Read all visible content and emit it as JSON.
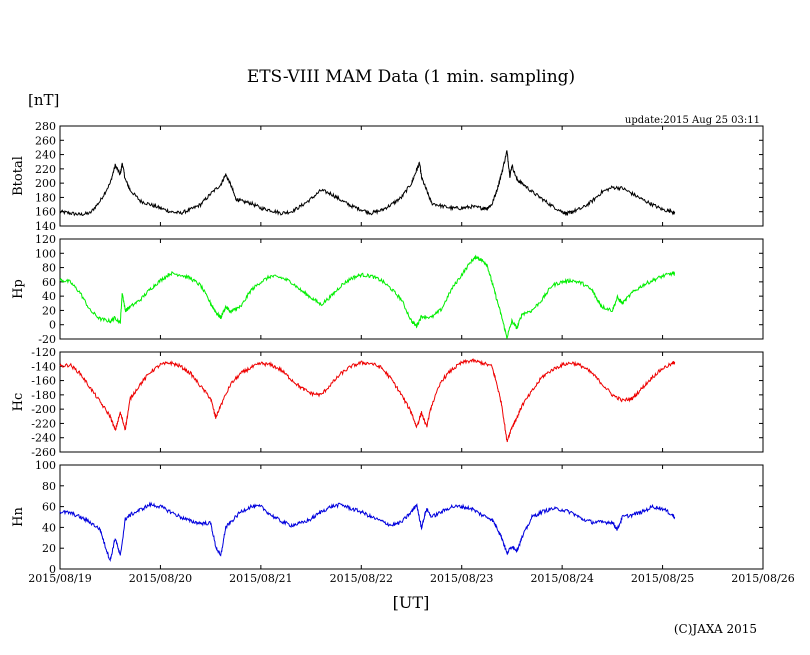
{
  "chart_data": {
    "type": "line",
    "title": "ETS-VIII MAM Data (1 min. sampling)",
    "y_unit_label": "[nT]",
    "x_label": "[UT]",
    "update_text": "update:2015 Aug 25 03:11",
    "copyright": "(C)JAXA 2015",
    "x_range": [
      0,
      7
    ],
    "x_ticks": [
      {
        "value": 0,
        "label": "2015/08/19"
      },
      {
        "value": 1,
        "label": "2015/08/20"
      },
      {
        "value": 2,
        "label": "2015/08/21"
      },
      {
        "value": 3,
        "label": "2015/08/22"
      },
      {
        "value": 4,
        "label": "2015/08/23"
      },
      {
        "value": 5,
        "label": "2015/08/24"
      },
      {
        "value": 6,
        "label": "2015/08/25"
      },
      {
        "value": 7,
        "label": "2015/08/26"
      }
    ],
    "data_end_day": 6.12,
    "panels": [
      {
        "name": "Btotal",
        "color": "#000000",
        "ylim": [
          140,
          280
        ],
        "yticks": [
          140,
          160,
          180,
          200,
          220,
          240,
          260,
          280
        ],
        "points": [
          [
            0,
            160
          ],
          [
            0.1,
            158
          ],
          [
            0.2,
            156
          ],
          [
            0.3,
            158
          ],
          [
            0.4,
            175
          ],
          [
            0.5,
            200
          ],
          [
            0.55,
            225
          ],
          [
            0.6,
            212
          ],
          [
            0.62,
            228
          ],
          [
            0.65,
            205
          ],
          [
            0.7,
            190
          ],
          [
            0.8,
            175
          ],
          [
            0.9,
            170
          ],
          [
            1.0,
            165
          ],
          [
            1.1,
            160
          ],
          [
            1.2,
            158
          ],
          [
            1.3,
            163
          ],
          [
            1.4,
            170
          ],
          [
            1.5,
            185
          ],
          [
            1.6,
            198
          ],
          [
            1.65,
            212
          ],
          [
            1.7,
            198
          ],
          [
            1.75,
            178
          ],
          [
            1.8,
            175
          ],
          [
            1.9,
            172
          ],
          [
            2.0,
            165
          ],
          [
            2.1,
            162
          ],
          [
            2.2,
            158
          ],
          [
            2.3,
            160
          ],
          [
            2.4,
            168
          ],
          [
            2.5,
            178
          ],
          [
            2.6,
            190
          ],
          [
            2.7,
            185
          ],
          [
            2.8,
            176
          ],
          [
            2.9,
            168
          ],
          [
            3.0,
            163
          ],
          [
            3.1,
            158
          ],
          [
            3.2,
            162
          ],
          [
            3.3,
            170
          ],
          [
            3.4,
            180
          ],
          [
            3.5,
            200
          ],
          [
            3.55,
            218
          ],
          [
            3.58,
            228
          ],
          [
            3.6,
            208
          ],
          [
            3.65,
            190
          ],
          [
            3.7,
            172
          ],
          [
            3.8,
            168
          ],
          [
            3.9,
            165
          ],
          [
            4.0,
            165
          ],
          [
            4.1,
            167
          ],
          [
            4.2,
            165
          ],
          [
            4.25,
            165
          ],
          [
            4.3,
            170
          ],
          [
            4.35,
            190
          ],
          [
            4.4,
            215
          ],
          [
            4.45,
            245
          ],
          [
            4.48,
            210
          ],
          [
            4.5,
            225
          ],
          [
            4.55,
            205
          ],
          [
            4.6,
            200
          ],
          [
            4.7,
            188
          ],
          [
            4.8,
            178
          ],
          [
            4.9,
            168
          ],
          [
            5.0,
            160
          ],
          [
            5.05,
            157
          ],
          [
            5.1,
            160
          ],
          [
            5.2,
            165
          ],
          [
            5.3,
            175
          ],
          [
            5.4,
            188
          ],
          [
            5.5,
            194
          ],
          [
            5.6,
            193
          ],
          [
            5.7,
            185
          ],
          [
            5.8,
            177
          ],
          [
            5.9,
            170
          ],
          [
            6.0,
            163
          ],
          [
            6.1,
            160
          ],
          [
            6.12,
            158
          ]
        ]
      },
      {
        "name": "Hp",
        "color": "#00ee00",
        "ylim": [
          -20,
          120
        ],
        "yticks": [
          -20,
          0,
          20,
          40,
          60,
          80,
          100,
          120
        ],
        "points": [
          [
            0,
            63
          ],
          [
            0.1,
            60
          ],
          [
            0.2,
            45
          ],
          [
            0.3,
            20
          ],
          [
            0.4,
            8
          ],
          [
            0.5,
            5
          ],
          [
            0.55,
            10
          ],
          [
            0.6,
            2
          ],
          [
            0.62,
            45
          ],
          [
            0.65,
            20
          ],
          [
            0.7,
            25
          ],
          [
            0.8,
            35
          ],
          [
            0.9,
            50
          ],
          [
            1.0,
            62
          ],
          [
            1.1,
            72
          ],
          [
            1.2,
            70
          ],
          [
            1.3,
            65
          ],
          [
            1.4,
            55
          ],
          [
            1.5,
            30
          ],
          [
            1.55,
            18
          ],
          [
            1.6,
            10
          ],
          [
            1.65,
            25
          ],
          [
            1.7,
            18
          ],
          [
            1.75,
            22
          ],
          [
            1.8,
            25
          ],
          [
            1.9,
            48
          ],
          [
            2.0,
            60
          ],
          [
            2.1,
            68
          ],
          [
            2.2,
            66
          ],
          [
            2.3,
            60
          ],
          [
            2.4,
            48
          ],
          [
            2.5,
            38
          ],
          [
            2.6,
            28
          ],
          [
            2.7,
            40
          ],
          [
            2.8,
            55
          ],
          [
            2.9,
            65
          ],
          [
            3.0,
            70
          ],
          [
            3.1,
            68
          ],
          [
            3.2,
            62
          ],
          [
            3.3,
            50
          ],
          [
            3.4,
            35
          ],
          [
            3.5,
            5
          ],
          [
            3.55,
            -2
          ],
          [
            3.6,
            12
          ],
          [
            3.7,
            10
          ],
          [
            3.8,
            22
          ],
          [
            3.9,
            50
          ],
          [
            4.0,
            70
          ],
          [
            4.1,
            90
          ],
          [
            4.15,
            95
          ],
          [
            4.2,
            90
          ],
          [
            4.25,
            85
          ],
          [
            4.3,
            60
          ],
          [
            4.35,
            35
          ],
          [
            4.4,
            10
          ],
          [
            4.45,
            -18
          ],
          [
            4.5,
            5
          ],
          [
            4.55,
            -5
          ],
          [
            4.6,
            15
          ],
          [
            4.7,
            20
          ],
          [
            4.8,
            35
          ],
          [
            4.9,
            55
          ],
          [
            5.0,
            60
          ],
          [
            5.1,
            62
          ],
          [
            5.2,
            58
          ],
          [
            5.3,
            48
          ],
          [
            5.35,
            35
          ],
          [
            5.4,
            25
          ],
          [
            5.5,
            20
          ],
          [
            5.55,
            38
          ],
          [
            5.6,
            30
          ],
          [
            5.7,
            45
          ],
          [
            5.8,
            55
          ],
          [
            5.9,
            62
          ],
          [
            6.0,
            68
          ],
          [
            6.1,
            72
          ],
          [
            6.12,
            72
          ]
        ]
      },
      {
        "name": "Hc",
        "color": "#ee0000",
        "ylim": [
          -260,
          -120
        ],
        "yticks": [
          -260,
          -240,
          -220,
          -200,
          -180,
          -160,
          -140,
          -120
        ],
        "points": [
          [
            0,
            -140
          ],
          [
            0.1,
            -138
          ],
          [
            0.2,
            -150
          ],
          [
            0.3,
            -170
          ],
          [
            0.4,
            -190
          ],
          [
            0.5,
            -210
          ],
          [
            0.55,
            -230
          ],
          [
            0.6,
            -205
          ],
          [
            0.65,
            -228
          ],
          [
            0.7,
            -185
          ],
          [
            0.8,
            -165
          ],
          [
            0.9,
            -148
          ],
          [
            1.0,
            -138
          ],
          [
            1.1,
            -135
          ],
          [
            1.2,
            -140
          ],
          [
            1.3,
            -150
          ],
          [
            1.4,
            -168
          ],
          [
            1.5,
            -185
          ],
          [
            1.55,
            -212
          ],
          [
            1.6,
            -195
          ],
          [
            1.7,
            -165
          ],
          [
            1.8,
            -150
          ],
          [
            1.9,
            -142
          ],
          [
            2.0,
            -136
          ],
          [
            2.1,
            -138
          ],
          [
            2.2,
            -145
          ],
          [
            2.3,
            -158
          ],
          [
            2.4,
            -170
          ],
          [
            2.5,
            -178
          ],
          [
            2.6,
            -180
          ],
          [
            2.7,
            -165
          ],
          [
            2.8,
            -150
          ],
          [
            2.9,
            -140
          ],
          [
            3.0,
            -135
          ],
          [
            3.1,
            -136
          ],
          [
            3.2,
            -142
          ],
          [
            3.3,
            -158
          ],
          [
            3.4,
            -180
          ],
          [
            3.5,
            -205
          ],
          [
            3.55,
            -225
          ],
          [
            3.6,
            -205
          ],
          [
            3.65,
            -225
          ],
          [
            3.7,
            -195
          ],
          [
            3.8,
            -160
          ],
          [
            3.9,
            -145
          ],
          [
            4.0,
            -135
          ],
          [
            4.1,
            -132
          ],
          [
            4.2,
            -135
          ],
          [
            4.3,
            -140
          ],
          [
            4.35,
            -165
          ],
          [
            4.4,
            -195
          ],
          [
            4.45,
            -245
          ],
          [
            4.5,
            -225
          ],
          [
            4.55,
            -212
          ],
          [
            4.6,
            -195
          ],
          [
            4.7,
            -175
          ],
          [
            4.8,
            -155
          ],
          [
            4.9,
            -145
          ],
          [
            5.0,
            -138
          ],
          [
            5.1,
            -135
          ],
          [
            5.2,
            -140
          ],
          [
            5.3,
            -150
          ],
          [
            5.4,
            -165
          ],
          [
            5.5,
            -180
          ],
          [
            5.6,
            -188
          ],
          [
            5.7,
            -185
          ],
          [
            5.8,
            -170
          ],
          [
            5.9,
            -155
          ],
          [
            6.0,
            -143
          ],
          [
            6.1,
            -136
          ],
          [
            6.12,
            -134
          ]
        ]
      },
      {
        "name": "Hn",
        "color": "#0000dd",
        "ylim": [
          0,
          100
        ],
        "yticks": [
          0,
          20,
          40,
          60,
          80,
          100
        ],
        "points": [
          [
            0,
            55
          ],
          [
            0.1,
            54
          ],
          [
            0.2,
            50
          ],
          [
            0.3,
            45
          ],
          [
            0.4,
            38
          ],
          [
            0.45,
            22
          ],
          [
            0.5,
            8
          ],
          [
            0.55,
            30
          ],
          [
            0.6,
            12
          ],
          [
            0.65,
            48
          ],
          [
            0.7,
            52
          ],
          [
            0.8,
            57
          ],
          [
            0.9,
            62
          ],
          [
            1.0,
            60
          ],
          [
            1.1,
            55
          ],
          [
            1.2,
            50
          ],
          [
            1.3,
            46
          ],
          [
            1.4,
            44
          ],
          [
            1.5,
            44
          ],
          [
            1.55,
            22
          ],
          [
            1.6,
            12
          ],
          [
            1.65,
            40
          ],
          [
            1.7,
            45
          ],
          [
            1.8,
            55
          ],
          [
            1.9,
            60
          ],
          [
            2.0,
            60
          ],
          [
            2.1,
            52
          ],
          [
            2.2,
            46
          ],
          [
            2.3,
            42
          ],
          [
            2.4,
            44
          ],
          [
            2.5,
            48
          ],
          [
            2.6,
            55
          ],
          [
            2.7,
            60
          ],
          [
            2.8,
            62
          ],
          [
            2.9,
            58
          ],
          [
            3.0,
            55
          ],
          [
            3.1,
            50
          ],
          [
            3.2,
            46
          ],
          [
            3.3,
            42
          ],
          [
            3.4,
            45
          ],
          [
            3.5,
            55
          ],
          [
            3.55,
            62
          ],
          [
            3.6,
            40
          ],
          [
            3.65,
            58
          ],
          [
            3.7,
            50
          ],
          [
            3.8,
            55
          ],
          [
            3.9,
            60
          ],
          [
            4.0,
            60
          ],
          [
            4.1,
            58
          ],
          [
            4.2,
            52
          ],
          [
            4.3,
            48
          ],
          [
            4.35,
            40
          ],
          [
            4.4,
            30
          ],
          [
            4.45,
            15
          ],
          [
            4.5,
            22
          ],
          [
            4.55,
            18
          ],
          [
            4.6,
            30
          ],
          [
            4.7,
            50
          ],
          [
            4.8,
            55
          ],
          [
            4.9,
            58
          ],
          [
            5.0,
            57
          ],
          [
            5.1,
            54
          ],
          [
            5.2,
            48
          ],
          [
            5.3,
            45
          ],
          [
            5.4,
            45
          ],
          [
            5.5,
            45
          ],
          [
            5.55,
            38
          ],
          [
            5.6,
            50
          ],
          [
            5.7,
            52
          ],
          [
            5.8,
            55
          ],
          [
            5.9,
            60
          ],
          [
            6.0,
            58
          ],
          [
            6.1,
            52
          ],
          [
            6.12,
            50
          ]
        ]
      }
    ]
  }
}
